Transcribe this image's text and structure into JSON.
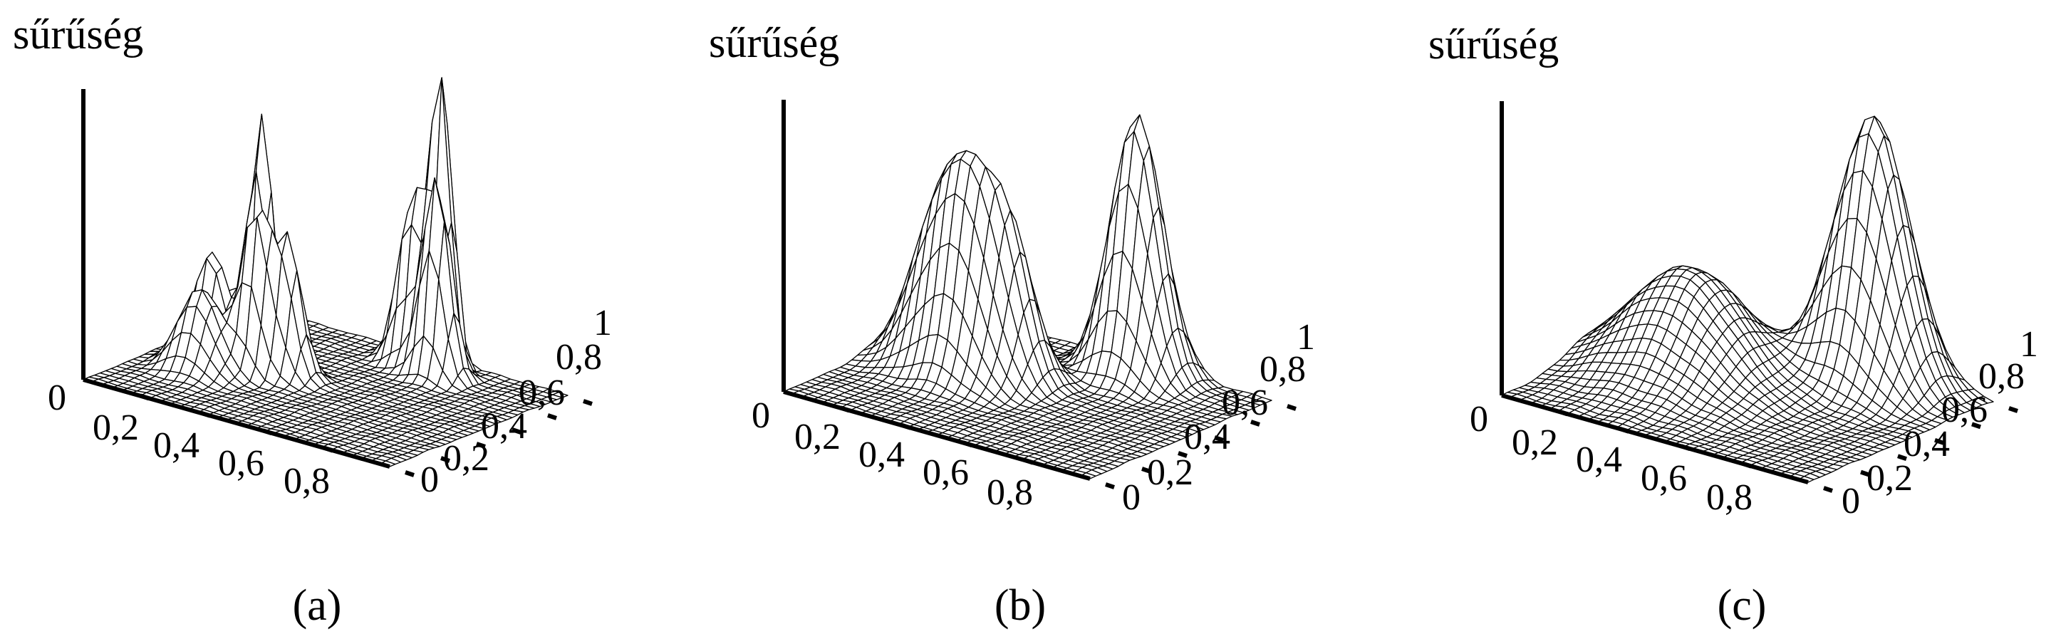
{
  "figure": {
    "panel_captions": [
      "(a)",
      "(b)",
      "(c)"
    ]
  },
  "chart_data": [
    {
      "type": "surface",
      "caption": "(a)",
      "zlabel": "sűrűség",
      "x_ticks": [
        "0",
        "0,2",
        "0,4",
        "0,6",
        "0,8"
      ],
      "y_ticks": [
        "0",
        "0,2",
        "0,4",
        "0,6",
        "0,8",
        "1"
      ],
      "xlim": [
        0,
        1
      ],
      "ylim": [
        0,
        1
      ],
      "grid_resolution": 32,
      "peaks": [
        {
          "x": 0.1,
          "y": 0.55,
          "height": 0.3,
          "width": 0.045
        },
        {
          "x": 0.22,
          "y": 0.62,
          "height": 0.72,
          "width": 0.035
        },
        {
          "x": 0.3,
          "y": 0.45,
          "height": 0.48,
          "width": 0.04
        },
        {
          "x": 0.38,
          "y": 0.5,
          "height": 0.4,
          "width": 0.04
        },
        {
          "x": 0.18,
          "y": 0.35,
          "height": 0.25,
          "width": 0.06
        },
        {
          "x": 0.55,
          "y": 0.9,
          "height": 0.5,
          "width": 0.04
        },
        {
          "x": 0.62,
          "y": 0.95,
          "height": 0.85,
          "width": 0.03
        },
        {
          "x": 0.66,
          "y": 0.85,
          "height": 0.6,
          "width": 0.04
        }
      ]
    },
    {
      "type": "surface",
      "caption": "(b)",
      "zlabel": "sűrűség",
      "x_ticks": [
        "0",
        "0,2",
        "0,4",
        "0,6",
        "0,8"
      ],
      "y_ticks": [
        "0",
        "0,2",
        "0,4",
        "0,6",
        "0,8",
        "1"
      ],
      "xlim": [
        0,
        1
      ],
      "ylim": [
        0,
        1
      ],
      "grid_resolution": 32,
      "peaks": [
        {
          "x": 0.18,
          "y": 0.55,
          "height": 0.4,
          "width": 0.085
        },
        {
          "x": 0.3,
          "y": 0.5,
          "height": 0.45,
          "width": 0.08
        },
        {
          "x": 0.4,
          "y": 0.58,
          "height": 0.38,
          "width": 0.07
        },
        {
          "x": 0.62,
          "y": 0.9,
          "height": 0.78,
          "width": 0.075
        }
      ]
    },
    {
      "type": "surface",
      "caption": "(c)",
      "zlabel": "sűrűség",
      "x_ticks": [
        "0",
        "0,2",
        "0,4",
        "0,6",
        "0,8"
      ],
      "y_ticks": [
        "0",
        "0,2",
        "0,4",
        "0,6",
        "0,8",
        "1"
      ],
      "xlim": [
        0,
        1
      ],
      "ylim": [
        0,
        1
      ],
      "grid_resolution": 32,
      "peaks": [
        {
          "x": 0.28,
          "y": 0.55,
          "height": 0.33,
          "width": 0.17
        },
        {
          "x": 0.68,
          "y": 0.88,
          "height": 0.82,
          "width": 0.105
        }
      ]
    }
  ]
}
